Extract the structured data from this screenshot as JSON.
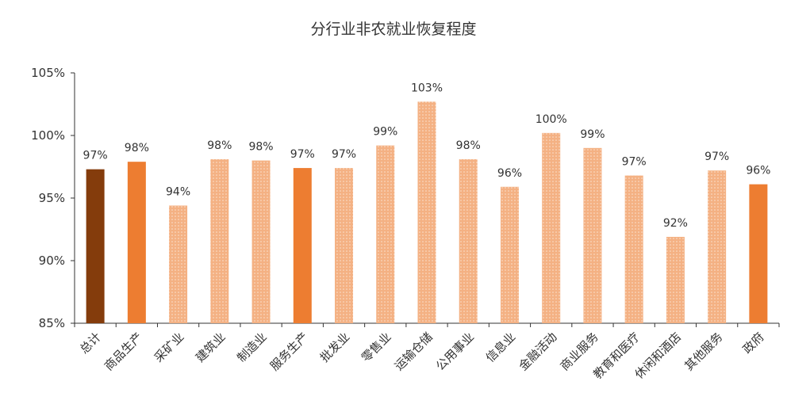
{
  "chart_data": {
    "type": "bar",
    "title": "分行业非农就业恢复程度",
    "xlabel": "",
    "ylabel": "",
    "ylim": [
      85,
      105
    ],
    "yticks": [
      "85%",
      "90%",
      "95%",
      "100%",
      "105%"
    ],
    "grid": false,
    "legend": "none",
    "categories": [
      "总计",
      "商品生产",
      "采矿业",
      "建筑业",
      "制造业",
      "服务生产",
      "批发业",
      "零售业",
      "运输仓储",
      "公用事业",
      "信息业",
      "金融活动",
      "商业服务",
      "教育和医疗",
      "休闲和酒店",
      "其他服务",
      "政府"
    ],
    "values": [
      97.3,
      97.9,
      94.4,
      98.1,
      98.0,
      97.4,
      97.4,
      99.2,
      102.7,
      98.1,
      95.9,
      100.2,
      99.0,
      96.8,
      91.9,
      97.2,
      96.1
    ],
    "data_labels": [
      "97%",
      "98%",
      "94%",
      "98%",
      "98%",
      "97%",
      "97%",
      "99%",
      "103%",
      "98%",
      "96%",
      "100%",
      "99%",
      "97%",
      "92%",
      "97%",
      "96%"
    ],
    "bar_styles": [
      "dark",
      "solid",
      "dotted",
      "dotted",
      "dotted",
      "solid",
      "dotted",
      "dotted",
      "dotted",
      "dotted",
      "dotted",
      "dotted",
      "dotted",
      "dotted",
      "dotted",
      "dotted",
      "solid"
    ],
    "colors": {
      "dark": "#843C0C",
      "solid": "#ED7D31",
      "dotted_fill": "#F4B183",
      "dotted_dot": "#FBE2D0",
      "axis": "#333333"
    }
  }
}
